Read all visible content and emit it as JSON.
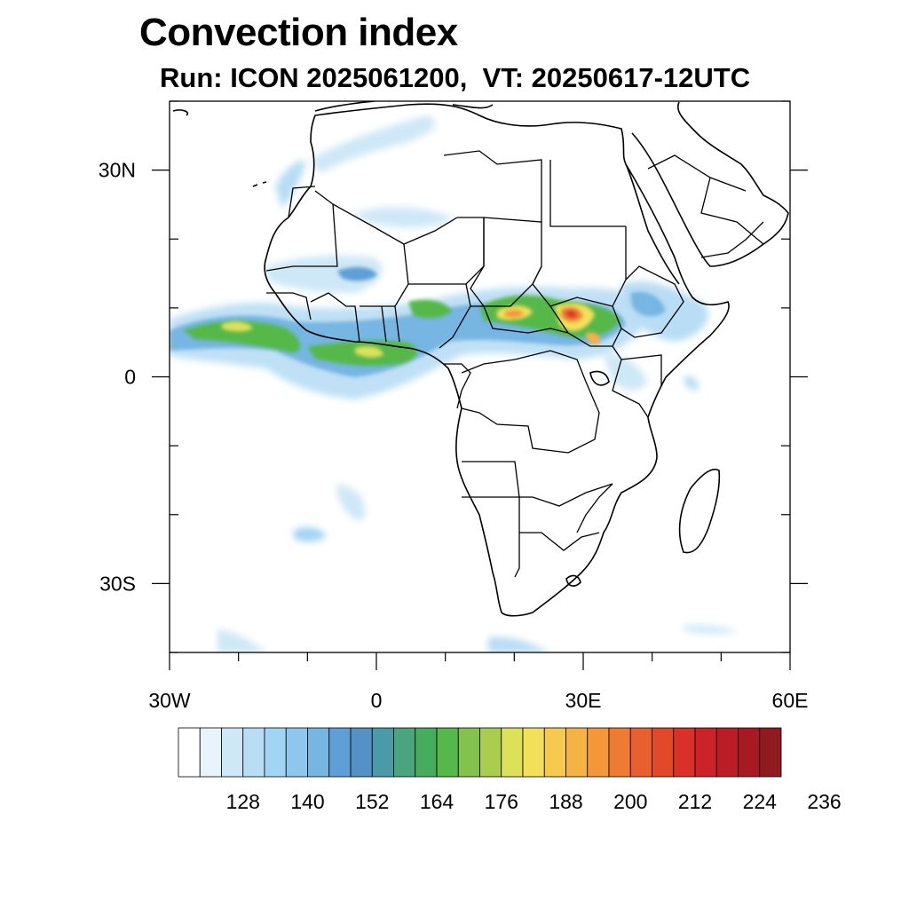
{
  "title": "Convection index",
  "subtitle": "Run: ICON 2025061200,  VT: 20250617-12UTC",
  "map": {
    "lon_range": [
      -30,
      60
    ],
    "lat_range": [
      -40,
      40
    ],
    "lat_labels": [
      "30N",
      "0",
      "30S"
    ],
    "lat_label_values": [
      30,
      0,
      -30
    ],
    "lon_labels": [
      "30W",
      "0",
      "30E",
      "60E"
    ],
    "lon_label_values": [
      -30,
      0,
      30,
      60
    ]
  },
  "colorbar": {
    "colors": [
      "#ffffff",
      "#e8f4fb",
      "#cfe8f7",
      "#b8ddf4",
      "#a2d4f3",
      "#8ec6ee",
      "#77b5e3",
      "#5f9fd6",
      "#5590c6",
      "#4a9aa8",
      "#4aa47e",
      "#47ad5e",
      "#56b84a",
      "#84c250",
      "#abcd4f",
      "#dde15a",
      "#f3e05a",
      "#f6c94f",
      "#f5b245",
      "#f4963a",
      "#ee7a33",
      "#e8602e",
      "#e2492b",
      "#da3029",
      "#cc2229",
      "#bc1c26",
      "#a81a22",
      "#8f1b1f"
    ],
    "tick_labels": [
      "128",
      "140",
      "152",
      "164",
      "176",
      "188",
      "200",
      "212",
      "224",
      "236"
    ]
  }
}
